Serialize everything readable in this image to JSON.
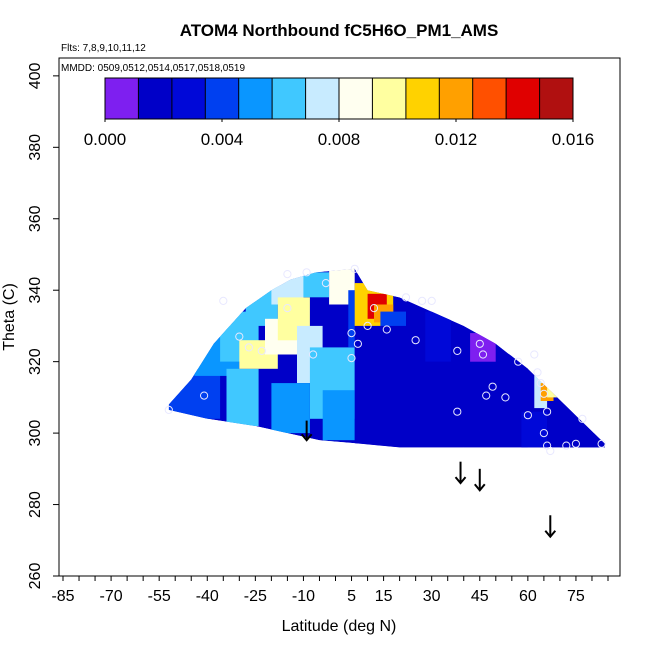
{
  "chart_data": {
    "type": "heatmap",
    "title": "ATOM4 Northbound fC5H6O_PM1_AMS",
    "flights_note": "Flts: 7,8,9,10,11,12",
    "dates_note": "MMDD: 0509,0512,0514,0517,0518,0519",
    "xlabel": "Latitude (deg N)",
    "ylabel": "Theta (C)",
    "xlim": [
      -85,
      85
    ],
    "ylim": [
      260,
      405
    ],
    "x_ticks": [
      -85,
      -70,
      -55,
      -40,
      -25,
      -10,
      5,
      15,
      30,
      45,
      60,
      75
    ],
    "y_ticks": [
      260,
      280,
      300,
      320,
      340,
      360,
      380,
      400
    ],
    "colorbar": {
      "range": [
        0,
        0.016
      ],
      "tick_labels": [
        "0.000",
        "0.004",
        "0.008",
        "0.012",
        "0.016"
      ],
      "tick_values": [
        0,
        0.004,
        0.008,
        0.012,
        0.016
      ],
      "colors": [
        "#7e1ff0",
        "#0000c8",
        "#0008d8",
        "#0040f0",
        "#0a96ff",
        "#40c8ff",
        "#c8ebff",
        "#fffff0",
        "#ffffa0",
        "#ffd200",
        "#ffa000",
        "#ff5000",
        "#e00000",
        "#b01010"
      ]
    },
    "envelope": [
      [
        -52,
        306.5
      ],
      [
        -52,
        308
      ],
      [
        -45,
        315
      ],
      [
        -38,
        325
      ],
      [
        -28,
        335
      ],
      [
        -20,
        340
      ],
      [
        -14,
        343
      ],
      [
        -6,
        345
      ],
      [
        6,
        346
      ],
      [
        10,
        340
      ],
      [
        20,
        338
      ],
      [
        30,
        334
      ],
      [
        40,
        330
      ],
      [
        50,
        325
      ],
      [
        60,
        318
      ],
      [
        68,
        311
      ],
      [
        76,
        304
      ],
      [
        84,
        297
      ],
      [
        84,
        296
      ],
      [
        70,
        296
      ],
      [
        20,
        296
      ],
      [
        8,
        297
      ],
      [
        -5,
        298
      ],
      [
        -15,
        300
      ],
      [
        -25,
        302
      ],
      [
        -40,
        304
      ],
      [
        -52,
        306.5
      ]
    ],
    "cells": [
      {
        "x": [
          -52,
          -36
        ],
        "y": [
          304,
          318
        ],
        "v": 0.0045
      },
      {
        "x": [
          -44,
          -30
        ],
        "y": [
          316,
          330
        ],
        "v": 0.005
      },
      {
        "x": [
          -36,
          -24
        ],
        "y": [
          320,
          334
        ],
        "v": 0.0058
      },
      {
        "x": [
          -28,
          -18
        ],
        "y": [
          330,
          341
        ],
        "v": 0.006
      },
      {
        "x": [
          -20,
          -10
        ],
        "y": [
          336,
          345
        ],
        "v": 0.0072
      },
      {
        "x": [
          -10,
          -2
        ],
        "y": [
          338,
          345
        ],
        "v": 0.0068
      },
      {
        "x": [
          -2,
          6
        ],
        "y": [
          336,
          346
        ],
        "v": 0.008
      },
      {
        "x": [
          -34,
          -24
        ],
        "y": [
          302,
          318
        ],
        "v": 0.0062
      },
      {
        "x": [
          -30,
          -18
        ],
        "y": [
          318,
          326
        ],
        "v": 0.0095
      },
      {
        "x": [
          -22,
          -10
        ],
        "y": [
          322,
          332
        ],
        "v": 0.0082
      },
      {
        "x": [
          -18,
          -8
        ],
        "y": [
          326,
          338
        ],
        "v": 0.0098
      },
      {
        "x": [
          -12,
          -4
        ],
        "y": [
          314,
          330
        ],
        "v": 0.0075
      },
      {
        "x": [
          -8,
          6
        ],
        "y": [
          304,
          324
        ],
        "v": 0.0066
      },
      {
        "x": [
          -20,
          -8
        ],
        "y": [
          300,
          314
        ],
        "v": 0.0055
      },
      {
        "x": [
          -4,
          6
        ],
        "y": [
          298,
          312
        ],
        "v": 0.0048
      },
      {
        "x": [
          4,
          10
        ],
        "y": [
          324,
          340
        ],
        "v": 0.0042
      },
      {
        "x": [
          6,
          18
        ],
        "y": [
          330,
          342
        ],
        "v": 0.0105
      },
      {
        "x": [
          10,
          16
        ],
        "y": [
          332,
          339
        ],
        "v": 0.0145
      },
      {
        "x": [
          12,
          18
        ],
        "y": [
          331,
          336
        ],
        "v": 0.0125
      },
      {
        "x": [
          14,
          22
        ],
        "y": [
          328,
          334
        ],
        "v": 0.0038
      },
      {
        "x": [
          6,
          40
        ],
        "y": [
          296,
          330
        ],
        "v": 0.0018
      },
      {
        "x": [
          40,
          60
        ],
        "y": [
          296,
          322
        ],
        "v": 0.0015
      },
      {
        "x": [
          58,
          84
        ],
        "y": [
          296,
          312
        ],
        "v": 0.0014
      },
      {
        "x": [
          28,
          36
        ],
        "y": [
          320,
          334
        ],
        "v": 0.0025
      },
      {
        "x": [
          42,
          50
        ],
        "y": [
          320,
          328
        ],
        "v": 0.0005
      },
      {
        "x": [
          44,
          48
        ],
        "y": [
          322,
          326
        ],
        "v": 0.0002
      },
      {
        "x": [
          62,
          66
        ],
        "y": [
          307,
          318
        ],
        "v": 0.007
      },
      {
        "x": [
          64,
          68
        ],
        "y": [
          309,
          314
        ],
        "v": 0.0115
      },
      {
        "x": [
          66,
          70
        ],
        "y": [
          310,
          315
        ],
        "v": 0.0094
      },
      {
        "x": [
          58,
          66
        ],
        "y": [
          296,
          306
        ],
        "v": 0.0032
      },
      {
        "x": [
          70,
          84
        ],
        "y": [
          296,
          300
        ],
        "v": 0.0012
      }
    ],
    "samples": [
      [
        -52,
        306.5
      ],
      [
        -41,
        310.5
      ],
      [
        -35,
        337
      ],
      [
        -30,
        327
      ],
      [
        -27,
        324
      ],
      [
        -23,
        323
      ],
      [
        -15,
        344.5
      ],
      [
        -15,
        335
      ],
      [
        -9,
        345
      ],
      [
        -7,
        322
      ],
      [
        -3,
        342
      ],
      [
        6,
        346
      ],
      [
        5,
        328
      ],
      [
        5,
        321
      ],
      [
        7,
        325
      ],
      [
        10,
        330
      ],
      [
        12,
        335
      ],
      [
        16,
        329
      ],
      [
        22,
        338
      ],
      [
        25,
        326
      ],
      [
        27,
        337
      ],
      [
        30,
        337
      ],
      [
        38,
        306
      ],
      [
        38,
        323
      ],
      [
        45,
        325
      ],
      [
        46,
        322
      ],
      [
        47,
        310.5
      ],
      [
        49,
        313
      ],
      [
        53,
        310
      ],
      [
        57,
        320
      ],
      [
        60,
        305
      ],
      [
        62,
        322
      ],
      [
        63,
        317
      ],
      [
        64,
        314
      ],
      [
        65,
        311
      ],
      [
        65,
        300
      ],
      [
        66,
        306
      ],
      [
        67,
        295
      ],
      [
        66,
        296.5
      ],
      [
        72,
        296.5
      ],
      [
        75,
        297
      ],
      [
        77,
        304
      ],
      [
        83,
        297
      ]
    ],
    "arrows": [
      {
        "x": -9,
        "y_top": 303.5,
        "y_bottom": 298
      },
      {
        "x": 39,
        "y_top": 292,
        "y_bottom": 286
      },
      {
        "x": 45,
        "y_top": 290,
        "y_bottom": 284
      },
      {
        "x": 67,
        "y_top": 277,
        "y_bottom": 271
      }
    ]
  }
}
